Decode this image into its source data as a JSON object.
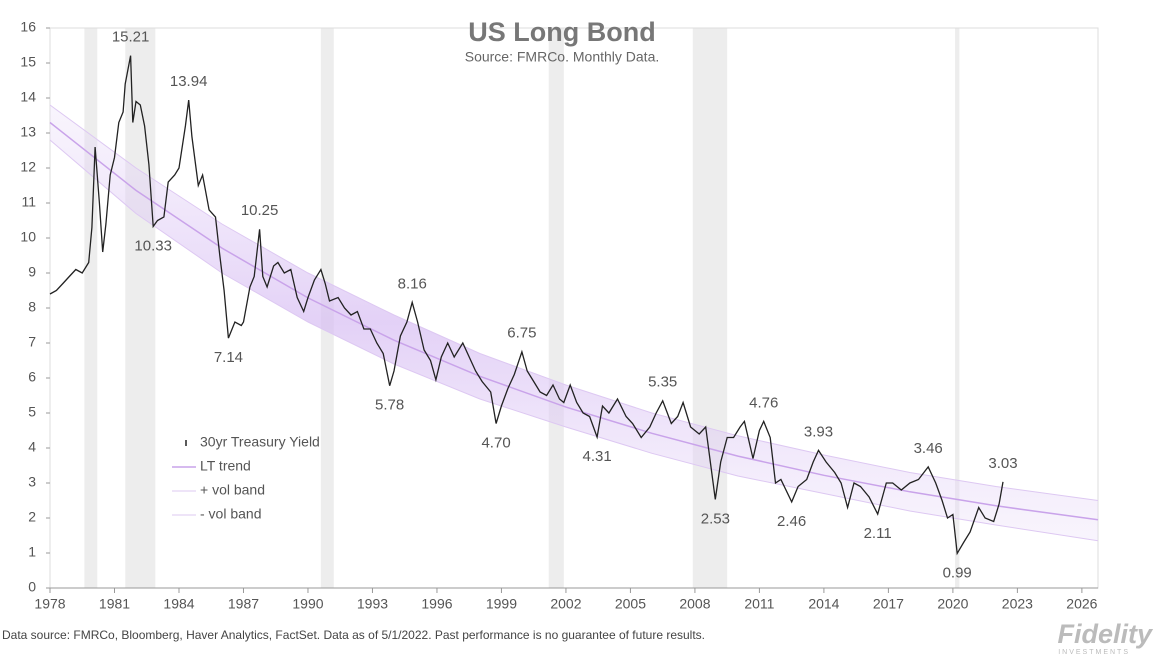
{
  "chart_data": {
    "type": "line",
    "title": "US Long Bond",
    "subtitle": "Source: FMRCo.  Monthly Data.",
    "footnote": "Data source: FMRCo, Bloomberg, Haver Analytics, FactSet. Data as of 5/1/2022. Past performance is no guarantee of future results.",
    "xlim": [
      1978,
      2026.75
    ],
    "xticks": [
      1978,
      1981,
      1984,
      1987,
      1990,
      1993,
      1996,
      1999,
      2002,
      2005,
      2008,
      2011,
      2014,
      2017,
      2020,
      2023,
      2026
    ],
    "ylim": [
      0,
      16
    ],
    "yticks": [
      0,
      1,
      2,
      3,
      4,
      5,
      6,
      7,
      8,
      9,
      10,
      11,
      12,
      13,
      14,
      15,
      16
    ],
    "legend": "left",
    "shaded_periods": [
      [
        1979.6,
        1980.2
      ],
      [
        1981.5,
        1982.9
      ],
      [
        1990.6,
        1991.2
      ],
      [
        2001.2,
        2001.9
      ],
      [
        2007.9,
        2009.5
      ],
      [
        2020.1,
        2020.3
      ]
    ],
    "series": [
      {
        "name": "30yr Treasury Yield",
        "color": "#222222",
        "x": [
          1978.0,
          1978.3,
          1978.6,
          1978.9,
          1979.2,
          1979.5,
          1979.8,
          1979.95,
          1980.1,
          1980.3,
          1980.45,
          1980.6,
          1980.8,
          1981.0,
          1981.2,
          1981.4,
          1981.5,
          1981.75,
          1981.85,
          1982.0,
          1982.2,
          1982.4,
          1982.6,
          1982.8,
          1983.0,
          1983.3,
          1983.5,
          1983.8,
          1984.0,
          1984.3,
          1984.45,
          1984.6,
          1984.9,
          1985.1,
          1985.4,
          1985.7,
          1985.9,
          1986.1,
          1986.3,
          1986.6,
          1986.9,
          1987.0,
          1987.3,
          1987.5,
          1987.75,
          1987.9,
          1988.1,
          1988.4,
          1988.6,
          1988.9,
          1989.2,
          1989.5,
          1989.8,
          1990.0,
          1990.3,
          1990.6,
          1990.8,
          1991.0,
          1991.4,
          1991.7,
          1992.0,
          1992.3,
          1992.6,
          1992.9,
          1993.2,
          1993.5,
          1993.8,
          1994.0,
          1994.3,
          1994.6,
          1994.85,
          1995.1,
          1995.4,
          1995.7,
          1995.95,
          1996.2,
          1996.5,
          1996.8,
          1997.2,
          1997.5,
          1997.8,
          1998.1,
          1998.5,
          1998.75,
          1999.0,
          1999.3,
          1999.6,
          1999.95,
          2000.2,
          2000.5,
          2000.8,
          2001.1,
          2001.4,
          2001.7,
          2001.9,
          2002.2,
          2002.5,
          2002.8,
          2003.1,
          2003.45,
          2003.7,
          2004.0,
          2004.4,
          2004.8,
          2005.1,
          2005.5,
          2005.9,
          2006.2,
          2006.5,
          2006.9,
          2007.2,
          2007.45,
          2007.8,
          2008.2,
          2008.5,
          2008.95,
          2009.2,
          2009.5,
          2009.8,
          2010.1,
          2010.3,
          2010.7,
          2011.0,
          2011.2,
          2011.5,
          2011.75,
          2012.0,
          2012.5,
          2012.8,
          2013.2,
          2013.5,
          2013.75,
          2014.1,
          2014.5,
          2014.8,
          2015.1,
          2015.4,
          2015.7,
          2016.1,
          2016.5,
          2016.9,
          2017.2,
          2017.6,
          2018.0,
          2018.4,
          2018.85,
          2019.2,
          2019.5,
          2019.75,
          2020.0,
          2020.2,
          2020.5,
          2020.8,
          2021.2,
          2021.5,
          2021.9,
          2022.15,
          2022.33
        ],
        "values": [
          8.4,
          8.5,
          8.7,
          8.9,
          9.1,
          9.0,
          9.3,
          10.3,
          12.6,
          11.0,
          9.6,
          10.4,
          11.8,
          12.3,
          13.3,
          13.6,
          14.4,
          15.21,
          13.3,
          13.9,
          13.8,
          13.2,
          12.1,
          10.33,
          10.5,
          10.6,
          11.6,
          11.8,
          12.0,
          13.2,
          13.94,
          12.9,
          11.5,
          11.8,
          10.8,
          10.6,
          9.5,
          8.5,
          7.14,
          7.6,
          7.5,
          7.6,
          8.6,
          8.9,
          10.25,
          8.9,
          8.6,
          9.2,
          9.3,
          9.0,
          9.1,
          8.3,
          7.9,
          8.3,
          8.8,
          9.1,
          8.7,
          8.2,
          8.3,
          8.0,
          7.8,
          7.9,
          7.4,
          7.4,
          7.0,
          6.7,
          5.78,
          6.2,
          7.2,
          7.6,
          8.16,
          7.6,
          6.8,
          6.5,
          5.95,
          6.6,
          7.0,
          6.6,
          7.0,
          6.6,
          6.2,
          5.9,
          5.6,
          4.7,
          5.2,
          5.7,
          6.1,
          6.75,
          6.2,
          5.9,
          5.6,
          5.5,
          5.8,
          5.4,
          5.3,
          5.8,
          5.3,
          5.0,
          4.9,
          4.31,
          5.2,
          5.0,
          5.4,
          4.9,
          4.7,
          4.3,
          4.6,
          5.0,
          5.35,
          4.7,
          4.9,
          5.3,
          4.6,
          4.4,
          4.6,
          2.53,
          3.6,
          4.3,
          4.3,
          4.6,
          4.76,
          3.7,
          4.5,
          4.76,
          4.3,
          3.0,
          3.1,
          2.46,
          2.9,
          3.1,
          3.6,
          3.93,
          3.6,
          3.3,
          3.0,
          2.3,
          3.0,
          2.9,
          2.6,
          2.11,
          3.0,
          3.0,
          2.8,
          3.0,
          3.1,
          3.46,
          3.0,
          2.5,
          2.0,
          2.1,
          0.99,
          1.3,
          1.6,
          2.3,
          2.0,
          1.9,
          2.4,
          3.03
        ]
      },
      {
        "name": "LT trend",
        "color": "#c9a3ea",
        "x": [
          1978,
          1982,
          1986,
          1990,
          1994,
          1998,
          2002,
          2006,
          2010,
          2014,
          2018,
          2022,
          2026.75
        ],
        "values": [
          13.3,
          11.36,
          9.71,
          8.29,
          7.08,
          6.05,
          5.17,
          4.42,
          3.77,
          3.22,
          2.75,
          2.35,
          1.95
        ]
      },
      {
        "name": "+ vol band",
        "color": "#ddc8f2",
        "x": [
          1978,
          1982,
          1986,
          1990,
          1994,
          1998,
          2002,
          2006,
          2010,
          2014,
          2018,
          2022,
          2026.75
        ],
        "values": [
          13.8,
          12.0,
          10.4,
          9.0,
          7.8,
          6.7,
          5.8,
          5.0,
          4.35,
          3.8,
          3.3,
          2.9,
          2.5
        ]
      },
      {
        "name": "- vol band",
        "color": "#ddc8f2",
        "x": [
          1978,
          1982,
          1986,
          1990,
          1994,
          1998,
          2002,
          2006,
          2010,
          2014,
          2018,
          2022,
          2026.75
        ],
        "values": [
          12.8,
          10.7,
          9.0,
          7.6,
          6.4,
          5.4,
          4.6,
          3.85,
          3.2,
          2.7,
          2.2,
          1.8,
          1.35
        ]
      }
    ],
    "annotations": [
      {
        "x": 1981.75,
        "value": 15.21,
        "label": "15.21",
        "position": "above"
      },
      {
        "x": 1984.45,
        "value": 13.94,
        "label": "13.94",
        "position": "above"
      },
      {
        "x": 1982.8,
        "value": 10.33,
        "label": "10.33",
        "position": "below"
      },
      {
        "x": 1987.75,
        "value": 10.25,
        "label": "10.25",
        "position": "above"
      },
      {
        "x": 1986.3,
        "value": 7.14,
        "label": "7.14",
        "position": "below"
      },
      {
        "x": 1994.85,
        "value": 8.16,
        "label": "8.16",
        "position": "above"
      },
      {
        "x": 1993.8,
        "value": 5.78,
        "label": "5.78",
        "position": "below"
      },
      {
        "x": 1999.95,
        "value": 6.75,
        "label": "6.75",
        "position": "above"
      },
      {
        "x": 1998.75,
        "value": 4.7,
        "label": "4.70",
        "position": "below"
      },
      {
        "x": 2003.45,
        "value": 4.31,
        "label": "4.31",
        "position": "below"
      },
      {
        "x": 2006.5,
        "value": 5.35,
        "label": "5.35",
        "position": "above"
      },
      {
        "x": 2008.95,
        "value": 2.53,
        "label": "2.53",
        "position": "below"
      },
      {
        "x": 2011.2,
        "value": 4.76,
        "label": "4.76",
        "position": "above"
      },
      {
        "x": 2013.75,
        "value": 3.93,
        "label": "3.93",
        "position": "above"
      },
      {
        "x": 2012.5,
        "value": 2.46,
        "label": "2.46",
        "position": "below"
      },
      {
        "x": 2018.85,
        "value": 3.46,
        "label": "3.46",
        "position": "above"
      },
      {
        "x": 2016.5,
        "value": 2.11,
        "label": "2.11",
        "position": "below"
      },
      {
        "x": 2022.33,
        "value": 3.03,
        "label": "3.03",
        "position": "above"
      },
      {
        "x": 2020.2,
        "value": 0.99,
        "label": "0.99",
        "position": "below"
      }
    ]
  },
  "logo": {
    "name": "Fidelity",
    "sub": "INVESTMENTS"
  }
}
